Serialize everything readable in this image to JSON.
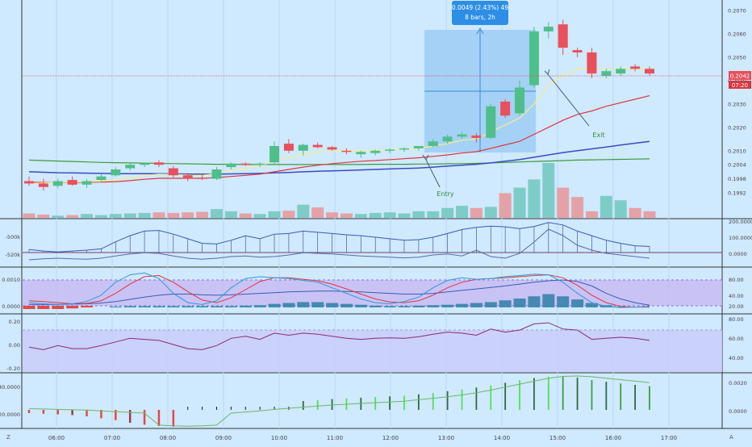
{
  "colors": {
    "bg": "#cfe9ff",
    "up": "#4fbf8a",
    "down": "#e8505b",
    "grid": "#b9d8f0",
    "divider": "#333333",
    "axis_text": "#444444",
    "callout_bg": "#2d8ee6",
    "selection": "#9fcdf5",
    "price_tag": "#e8505b",
    "volume_up": "#74c9c1",
    "volume_down": "#e79a9c",
    "bullet_dark": "#2e6b3a",
    "bullet_light": "#52e052",
    "bar_red": "#e24a44",
    "bar_darkred": "#a53a3a",
    "purple_band": "#c7b5f2"
  },
  "price_axis": {
    "ticks": [
      "0.2070",
      "0.2060",
      "0.2050",
      "0.2040",
      "0.2030",
      "0.2020",
      "0.2010",
      "0.2004",
      "0.1998",
      "0.1992"
    ],
    "last_price": "0.2042",
    "countdown": "07:20"
  },
  "callout": {
    "line1": "0.0049 (2.43%) 49",
    "line2": "8 bars, 2h"
  },
  "annotations": {
    "entry": "Entry",
    "exit": "Exit"
  },
  "pane_obv": {
    "left_ticks": [
      "-500k",
      "-520k"
    ],
    "right_ticks": [
      "200.0000",
      "100.0000",
      "0.0000"
    ]
  },
  "pane_stoch": {
    "left_ticks": [
      "0.0010",
      "0.0000"
    ],
    "right_ticks": [
      "80.00",
      "40.00",
      "20.00"
    ]
  },
  "pane_rsi": {
    "left_ticks": [
      "0.20",
      "0.00",
      "-0.20"
    ],
    "right_ticks": [
      "80.00",
      "60.00",
      "40.00"
    ]
  },
  "pane_macd": {
    "left_ticks": [
      "40.0000",
      "20.0000"
    ],
    "right_ticks": [
      "0.0020",
      "0.0000"
    ]
  },
  "time_axis": {
    "labels": [
      "06:00",
      "07:00",
      "08:00",
      "09:00",
      "10:00",
      "11:00",
      "12:00",
      "13:00",
      "14:00",
      "15:00",
      "16:00",
      "17:00"
    ],
    "corner_left": "Z",
    "corner_right": "A"
  },
  "chart_data": {
    "type": "candlestick",
    "candles": [
      {
        "o": 0.1997,
        "h": 0.1999,
        "l": 0.1995,
        "c": 0.1996
      },
      {
        "o": 0.1996,
        "h": 0.1998,
        "l": 0.1993,
        "c": 0.19945
      },
      {
        "o": 0.1995,
        "h": 0.1998,
        "l": 0.1994,
        "c": 0.1997
      },
      {
        "o": 0.19975,
        "h": 0.1999,
        "l": 0.1995,
        "c": 0.19955
      },
      {
        "o": 0.19955,
        "h": 0.1998,
        "l": 0.1994,
        "c": 0.1997
      },
      {
        "o": 0.19975,
        "h": 0.2,
        "l": 0.1997,
        "c": 0.1999
      },
      {
        "o": 0.19995,
        "h": 0.2003,
        "l": 0.1999,
        "c": 0.2002
      },
      {
        "o": 0.20025,
        "h": 0.20045,
        "l": 0.20015,
        "c": 0.2004
      },
      {
        "o": 0.2004,
        "h": 0.2005,
        "l": 0.2003,
        "c": 0.20045
      },
      {
        "o": 0.2005,
        "h": 0.2006,
        "l": 0.2003,
        "c": 0.2004
      },
      {
        "o": 0.20025,
        "h": 0.20035,
        "l": 0.19985,
        "c": 0.19995
      },
      {
        "o": 0.19995,
        "h": 0.20005,
        "l": 0.1997,
        "c": 0.19985
      },
      {
        "o": 0.19985,
        "h": 0.2,
        "l": 0.19975,
        "c": 0.1998
      },
      {
        "o": 0.1998,
        "h": 0.2003,
        "l": 0.19975,
        "c": 0.2002
      },
      {
        "o": 0.2003,
        "h": 0.2005,
        "l": 0.2002,
        "c": 0.20045
      },
      {
        "o": 0.20045,
        "h": 0.2005,
        "l": 0.20035,
        "c": 0.2004
      },
      {
        "o": 0.2004,
        "h": 0.2005,
        "l": 0.2003,
        "c": 0.20045
      },
      {
        "o": 0.2005,
        "h": 0.2014,
        "l": 0.2004,
        "c": 0.2012
      },
      {
        "o": 0.2013,
        "h": 0.2015,
        "l": 0.2009,
        "c": 0.201
      },
      {
        "o": 0.201,
        "h": 0.2013,
        "l": 0.2008,
        "c": 0.20125
      },
      {
        "o": 0.20125,
        "h": 0.20135,
        "l": 0.2011,
        "c": 0.20115
      },
      {
        "o": 0.20115,
        "h": 0.2012,
        "l": 0.201,
        "c": 0.20105
      },
      {
        "o": 0.201,
        "h": 0.2011,
        "l": 0.20085,
        "c": 0.20095
      },
      {
        "o": 0.20085,
        "h": 0.201,
        "l": 0.2007,
        "c": 0.20095
      },
      {
        "o": 0.2009,
        "h": 0.20105,
        "l": 0.2008,
        "c": 0.201
      },
      {
        "o": 0.201,
        "h": 0.2011,
        "l": 0.2009,
        "c": 0.20105
      },
      {
        "o": 0.20105,
        "h": 0.20115,
        "l": 0.20095,
        "c": 0.2011
      },
      {
        "o": 0.2011,
        "h": 0.2012,
        "l": 0.201,
        "c": 0.2012
      },
      {
        "o": 0.2012,
        "h": 0.2015,
        "l": 0.20115,
        "c": 0.2014
      },
      {
        "o": 0.2014,
        "h": 0.2017,
        "l": 0.2013,
        "c": 0.2016
      },
      {
        "o": 0.2016,
        "h": 0.2018,
        "l": 0.2015,
        "c": 0.2017
      },
      {
        "o": 0.20165,
        "h": 0.20175,
        "l": 0.20135,
        "c": 0.20155
      },
      {
        "o": 0.20155,
        "h": 0.203,
        "l": 0.2015,
        "c": 0.2029
      },
      {
        "o": 0.2031,
        "h": 0.2032,
        "l": 0.2024,
        "c": 0.2025
      },
      {
        "o": 0.2026,
        "h": 0.204,
        "l": 0.2025,
        "c": 0.2037
      },
      {
        "o": 0.2038,
        "h": 0.2063,
        "l": 0.2037,
        "c": 0.2061
      },
      {
        "o": 0.2061,
        "h": 0.2065,
        "l": 0.2058,
        "c": 0.2063
      },
      {
        "o": 0.2064,
        "h": 0.2066,
        "l": 0.2051,
        "c": 0.2054
      },
      {
        "o": 0.2053,
        "h": 0.2054,
        "l": 0.205,
        "c": 0.2052
      },
      {
        "o": 0.2052,
        "h": 0.2054,
        "l": 0.2041,
        "c": 0.2043
      },
      {
        "o": 0.2042,
        "h": 0.2045,
        "l": 0.2041,
        "c": 0.2044
      },
      {
        "o": 0.2043,
        "h": 0.2046,
        "l": 0.2042,
        "c": 0.2045
      },
      {
        "o": 0.2046,
        "h": 0.2047,
        "l": 0.2044,
        "c": 0.2045
      },
      {
        "o": 0.2045,
        "h": 0.2046,
        "l": 0.2042,
        "c": 0.2043
      }
    ],
    "volume": [
      0.08,
      0.06,
      0.04,
      0.05,
      0.07,
      0.05,
      0.07,
      0.08,
      0.09,
      0.1,
      0.09,
      0.1,
      0.11,
      0.16,
      0.12,
      0.08,
      0.07,
      0.12,
      0.13,
      0.24,
      0.19,
      0.1,
      0.08,
      0.07,
      0.09,
      0.1,
      0.08,
      0.12,
      0.12,
      0.18,
      0.22,
      0.18,
      0.2,
      0.45,
      0.55,
      0.7,
      1.0,
      0.55,
      0.38,
      0.12,
      0.4,
      0.32,
      0.18,
      0.12
    ],
    "ma_fast": [
      0.1996,
      0.19962,
      0.19965,
      0.19966,
      0.19968,
      0.1997,
      0.19975,
      0.19985,
      0.19995,
      0.2,
      0.19998,
      0.19996,
      0.19995,
      0.20002,
      0.20015,
      0.20025,
      0.20035,
      0.20055,
      0.2007,
      0.20085,
      0.20095,
      0.201,
      0.201,
      0.201,
      0.20102,
      0.20104,
      0.20106,
      0.2011,
      0.2012,
      0.2013,
      0.20145,
      0.2015,
      0.2018,
      0.2021,
      0.2024,
      0.203,
      0.2038,
      0.2042,
      0.2045,
      0.2045,
      0.2045,
      0.2045,
      0.2045,
      0.20448
    ],
    "ma_mid": [
      0.19965,
      0.19964,
      0.19964,
      0.19964,
      0.19965,
      0.19966,
      0.19968,
      0.19972,
      0.19978,
      0.19982,
      0.19982,
      0.19982,
      0.19982,
      0.19985,
      0.1999,
      0.19995,
      0.2,
      0.2001,
      0.2002,
      0.2003,
      0.20038,
      0.20045,
      0.2005,
      0.20055,
      0.20058,
      0.20062,
      0.20066,
      0.2007,
      0.20076,
      0.20082,
      0.2009,
      0.20096,
      0.2011,
      0.20125,
      0.2014,
      0.2017,
      0.202,
      0.2023,
      0.20255,
      0.2027,
      0.2029,
      0.20305,
      0.2032,
      0.20335
    ],
    "ma_slow_blue": [
      0.2001,
      0.20008,
      0.20006,
      0.20005,
      0.20004,
      0.20003,
      0.20002,
      0.20002,
      0.20002,
      0.20002,
      0.20001,
      0.2,
      0.2,
      0.2,
      0.20001,
      0.20002,
      0.20003,
      0.20005,
      0.20007,
      0.2001,
      0.20012,
      0.20014,
      0.20016,
      0.20018,
      0.2002,
      0.20022,
      0.20024,
      0.20026,
      0.2003,
      0.20034,
      0.20038,
      0.20042,
      0.20048,
      0.20055,
      0.20062,
      0.20072,
      0.20082,
      0.20092,
      0.201,
      0.20108,
      0.20116,
      0.20124,
      0.20132,
      0.2014
    ],
    "ma_slow_green": [
      0.2006,
      0.20058,
      0.20056,
      0.20054,
      0.20052,
      0.2005,
      0.20049,
      0.20048,
      0.20047,
      0.20046,
      0.20045,
      0.20044,
      0.20043,
      0.20042,
      0.20042,
      0.20041,
      0.20041,
      0.20041,
      0.20041,
      0.20041,
      0.20041,
      0.20041,
      0.20041,
      0.20041,
      0.20042,
      0.20042,
      0.20042,
      0.20043,
      0.20043,
      0.20044,
      0.20045,
      0.20046,
      0.20048,
      0.2005,
      0.20052,
      0.20054,
      0.20056,
      0.20058,
      0.2006,
      0.20061,
      0.20062,
      0.20063,
      0.20064,
      0.20065
    ],
    "obv_a": [
      0.1,
      0.05,
      0.02,
      0.05,
      0.08,
      0.12,
      0.35,
      0.55,
      0.7,
      0.72,
      0.6,
      0.45,
      0.3,
      0.28,
      0.4,
      0.55,
      0.45,
      0.6,
      0.62,
      0.7,
      0.66,
      0.62,
      0.58,
      0.55,
      0.5,
      0.45,
      0.4,
      0.42,
      0.5,
      0.62,
      0.75,
      0.82,
      0.86,
      0.84,
      0.78,
      0.85,
      0.98,
      0.9,
      0.7,
      0.55,
      0.4,
      0.3,
      0.22,
      0.2
    ],
    "obv_b": [
      0.0,
      0.03,
      0.05,
      0.03,
      0.02,
      0.05,
      0.12,
      0.18,
      0.22,
      0.2,
      0.12,
      0.05,
      0.02,
      0.05,
      0.1,
      0.12,
      0.08,
      0.1,
      0.15,
      0.22,
      0.2,
      0.18,
      0.15,
      0.12,
      0.1,
      0.08,
      0.06,
      0.08,
      0.15,
      0.18,
      0.12,
      0.3,
      0.1,
      0.05,
      0.2,
      0.55,
      0.95,
      0.75,
      0.45,
      0.3,
      0.2,
      0.15,
      0.1,
      0.05
    ],
    "stoch_k": [
      0.15,
      0.12,
      0.1,
      0.12,
      0.18,
      0.35,
      0.7,
      0.9,
      0.95,
      0.8,
      0.4,
      0.15,
      0.1,
      0.2,
      0.55,
      0.8,
      0.85,
      0.82,
      0.8,
      0.75,
      0.7,
      0.55,
      0.4,
      0.25,
      0.15,
      0.12,
      0.18,
      0.3,
      0.55,
      0.75,
      0.82,
      0.78,
      0.8,
      0.85,
      0.88,
      0.92,
      0.9,
      0.7,
      0.4,
      0.15,
      0.05,
      0.02,
      0.03,
      0.05
    ],
    "stoch_d": [
      0.2,
      0.18,
      0.15,
      0.12,
      0.13,
      0.2,
      0.4,
      0.65,
      0.85,
      0.88,
      0.7,
      0.45,
      0.22,
      0.15,
      0.28,
      0.5,
      0.72,
      0.82,
      0.82,
      0.78,
      0.74,
      0.65,
      0.52,
      0.38,
      0.25,
      0.17,
      0.15,
      0.2,
      0.35,
      0.55,
      0.7,
      0.78,
      0.8,
      0.82,
      0.85,
      0.88,
      0.9,
      0.82,
      0.62,
      0.35,
      0.15,
      0.05,
      0.03,
      0.03
    ],
    "stoch_slow": [
      0.1,
      0.1,
      0.1,
      0.11,
      0.12,
      0.14,
      0.18,
      0.24,
      0.3,
      0.35,
      0.38,
      0.38,
      0.36,
      0.35,
      0.36,
      0.38,
      0.4,
      0.42,
      0.44,
      0.45,
      0.46,
      0.46,
      0.45,
      0.44,
      0.42,
      0.4,
      0.38,
      0.38,
      0.4,
      0.44,
      0.48,
      0.52,
      0.56,
      0.6,
      0.65,
      0.7,
      0.74,
      0.76,
      0.72,
      0.6,
      0.4,
      0.25,
      0.15,
      0.08
    ],
    "stoch_hist": [
      -0.1,
      -0.1,
      -0.1,
      -0.08,
      -0.05,
      0.0,
      0.02,
      0.03,
      0.03,
      0.03,
      0.03,
      0.03,
      0.03,
      0.03,
      0.03,
      0.04,
      0.05,
      0.08,
      0.1,
      0.12,
      0.12,
      0.1,
      0.08,
      0.06,
      0.04,
      0.03,
      0.03,
      0.04,
      0.05,
      0.06,
      0.08,
      0.1,
      0.12,
      0.16,
      0.2,
      0.25,
      0.3,
      0.25,
      0.18,
      0.1,
      0.05,
      0.02,
      0.01,
      0.0
    ],
    "rsi": [
      0.45,
      0.4,
      0.48,
      0.42,
      0.42,
      0.48,
      0.55,
      0.62,
      0.6,
      0.58,
      0.5,
      0.42,
      0.4,
      0.48,
      0.62,
      0.66,
      0.6,
      0.72,
      0.68,
      0.72,
      0.7,
      0.66,
      0.62,
      0.6,
      0.62,
      0.63,
      0.62,
      0.65,
      0.7,
      0.74,
      0.72,
      0.68,
      0.8,
      0.74,
      0.78,
      0.9,
      0.92,
      0.8,
      0.78,
      0.6,
      0.62,
      0.64,
      0.62,
      0.58
    ],
    "macd_hist": [
      0.25,
      0.24,
      0.23,
      0.22,
      0.2,
      0.17,
      0.14,
      0.1,
      0.07,
      0.05,
      0.04,
      0.04,
      0.05,
      0.07,
      0.1,
      0.13,
      0.16,
      0.2,
      0.23,
      0.26,
      0.29,
      0.32,
      0.34,
      0.36,
      0.38,
      0.4,
      0.42,
      0.46,
      0.5,
      0.55,
      0.6,
      0.66,
      0.72,
      0.8,
      0.88,
      0.94,
      0.98,
      1.0,
      0.95,
      0.88,
      0.83,
      0.78,
      0.74,
      0.7
    ],
    "macd_line": [
      0.12,
      0.11,
      0.1,
      0.09,
      0.08,
      0.06,
      0.04,
      0.02,
      0.0,
      -0.02,
      -0.04,
      -0.05,
      -0.04,
      -0.02,
      0.0,
      0.03,
      0.06,
      0.1,
      0.13,
      0.16,
      0.19,
      0.22,
      0.24,
      0.26,
      0.28,
      0.3,
      0.32,
      0.36,
      0.4,
      0.44,
      0.49,
      0.55,
      0.62,
      0.7,
      0.78,
      0.86,
      0.94,
      0.99,
      1.0,
      0.98,
      0.94,
      0.9,
      0.86,
      0.82
    ]
  }
}
